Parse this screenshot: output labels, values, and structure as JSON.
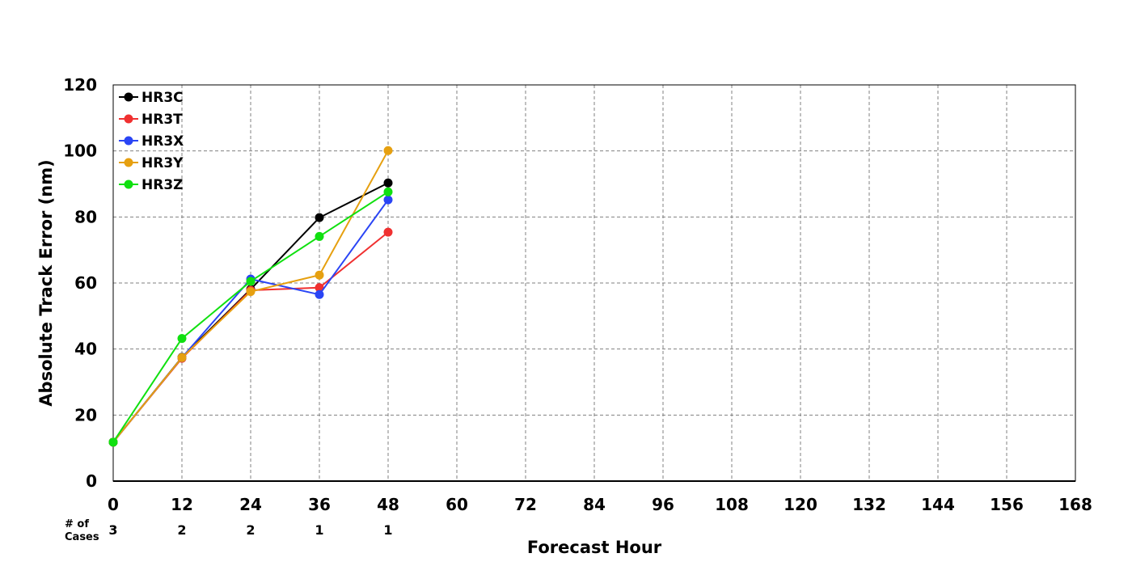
{
  "chart_data": {
    "type": "line",
    "xlabel": "Forecast Hour",
    "ylabel": "Absolute Track Error (nm)",
    "xlim": [
      0,
      168
    ],
    "ylim": [
      0,
      120
    ],
    "xticks": [
      0,
      12,
      24,
      36,
      48,
      60,
      72,
      84,
      96,
      108,
      120,
      132,
      144,
      156,
      168
    ],
    "yticks": [
      0,
      20,
      40,
      60,
      80,
      100,
      120
    ],
    "grid": true,
    "legend_position": "top-left",
    "cases_label_line1": "# of",
    "cases_label_line2": "Cases",
    "cases": [
      {
        "x": 0,
        "count": "3"
      },
      {
        "x": 12,
        "count": "2"
      },
      {
        "x": 24,
        "count": "2"
      },
      {
        "x": 36,
        "count": "1"
      },
      {
        "x": 48,
        "count": "1"
      }
    ],
    "series": [
      {
        "name": "HR3C",
        "color": "#000000",
        "x": [
          0,
          12,
          24,
          36,
          48
        ],
        "values": [
          11.8,
          37.5,
          58.1,
          79.8,
          90.3
        ]
      },
      {
        "name": "HR3T",
        "color": "#f03030",
        "x": [
          0,
          12,
          24,
          36,
          48
        ],
        "values": [
          11.8,
          37.2,
          57.8,
          58.6,
          75.4
        ]
      },
      {
        "name": "HR3X",
        "color": "#2a45f5",
        "x": [
          0,
          12,
          24,
          36,
          48
        ],
        "values": [
          11.8,
          37.4,
          61.2,
          56.5,
          85.2
        ]
      },
      {
        "name": "HR3Y",
        "color": "#e6a010",
        "x": [
          0,
          12,
          24,
          36,
          48
        ],
        "values": [
          11.8,
          37.4,
          57.4,
          62.4,
          100.1
        ]
      },
      {
        "name": "HR3Z",
        "color": "#10e010",
        "x": [
          0,
          12,
          24,
          36,
          48
        ],
        "values": [
          11.8,
          43.2,
          60.5,
          74.1,
          87.6
        ]
      }
    ]
  }
}
